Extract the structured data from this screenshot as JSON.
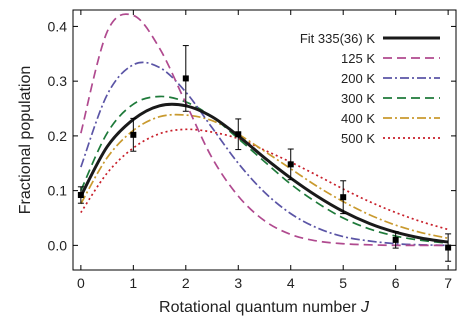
{
  "chart_data": {
    "type": "line",
    "xlabel": "Rotational quantum number",
    "xlabel_italic": "J",
    "ylabel": "Fractional population",
    "xlim": [
      -0.15,
      7.15
    ],
    "ylim": [
      -0.045,
      0.43
    ],
    "xticks": [
      "0",
      "1",
      "2",
      "3",
      "4",
      "5",
      "6",
      "7"
    ],
    "yticks": [
      "0.0",
      "0.1",
      "0.2",
      "0.3",
      "0.4"
    ],
    "grid": false,
    "legend_position": "top-right",
    "series": [
      {
        "name": "Fit 335(36) K",
        "color": "#1a1a1a",
        "style": "solid",
        "x": [
          0,
          0.5,
          1,
          1.5,
          2,
          2.5,
          3,
          3.5,
          4,
          4.5,
          5,
          5.5,
          6,
          6.5,
          7
        ],
        "y": [
          0.09,
          0.18,
          0.23,
          0.255,
          0.255,
          0.235,
          0.2,
          0.16,
          0.123,
          0.09,
          0.062,
          0.04,
          0.024,
          0.013,
          0.006
        ]
      },
      {
        "name": "125 K",
        "color": "#b04a8f",
        "style": "dashed",
        "x": [
          0,
          0.5,
          1,
          1.5,
          2,
          2.5,
          3,
          3.5,
          4,
          4.5,
          5,
          5.5,
          6,
          6.5,
          7
        ],
        "y": [
          0.205,
          0.39,
          0.42,
          0.36,
          0.26,
          0.16,
          0.09,
          0.045,
          0.02,
          0.008,
          0.003,
          0.001,
          0.0,
          0.0,
          0.0
        ]
      },
      {
        "name": "200 K",
        "color": "#5b55a6",
        "style": "dashdot",
        "x": [
          0,
          0.5,
          1,
          1.5,
          2,
          2.5,
          3,
          3.5,
          4,
          4.5,
          5,
          5.5,
          6,
          6.5,
          7
        ],
        "y": [
          0.143,
          0.275,
          0.33,
          0.325,
          0.28,
          0.215,
          0.15,
          0.097,
          0.058,
          0.032,
          0.016,
          0.008,
          0.003,
          0.001,
          0.0
        ]
      },
      {
        "name": "300 K",
        "color": "#1e7a3a",
        "style": "dashed",
        "x": [
          0,
          0.5,
          1,
          1.5,
          2,
          2.5,
          3,
          3.5,
          4,
          4.5,
          5,
          5.5,
          6,
          6.5,
          7
        ],
        "y": [
          0.1,
          0.205,
          0.258,
          0.272,
          0.262,
          0.235,
          0.195,
          0.153,
          0.112,
          0.078,
          0.05,
          0.03,
          0.017,
          0.009,
          0.004
        ]
      },
      {
        "name": "400 K",
        "color": "#c99a2e",
        "style": "dashdot",
        "x": [
          0,
          0.5,
          1,
          1.5,
          2,
          2.5,
          3,
          3.5,
          4,
          4.5,
          5,
          5.5,
          6,
          6.5,
          7
        ],
        "y": [
          0.076,
          0.16,
          0.21,
          0.235,
          0.238,
          0.228,
          0.203,
          0.172,
          0.14,
          0.108,
          0.08,
          0.056,
          0.037,
          0.023,
          0.013
        ]
      },
      {
        "name": "500 K",
        "color": "#c81f2a",
        "style": "dotted",
        "x": [
          0,
          0.5,
          1,
          1.5,
          2,
          2.5,
          3,
          3.5,
          4,
          4.5,
          5,
          5.5,
          6,
          6.5,
          7
        ],
        "y": [
          0.06,
          0.132,
          0.178,
          0.204,
          0.212,
          0.207,
          0.195,
          0.174,
          0.152,
          0.128,
          0.103,
          0.08,
          0.06,
          0.043,
          0.029
        ]
      }
    ],
    "measured": {
      "marker": "square",
      "color": "#000000",
      "points": [
        {
          "x": 0,
          "y": 0.092,
          "err": 0.015
        },
        {
          "x": 1,
          "y": 0.202,
          "err": 0.03
        },
        {
          "x": 2,
          "y": 0.305,
          "err": 0.06
        },
        {
          "x": 3,
          "y": 0.203,
          "err": 0.028
        },
        {
          "x": 4,
          "y": 0.148,
          "err": 0.028
        },
        {
          "x": 5,
          "y": 0.088,
          "err": 0.03
        },
        {
          "x": 6,
          "y": 0.01,
          "err": 0.015
        },
        {
          "x": 7,
          "y": -0.004,
          "err": 0.025
        }
      ]
    }
  }
}
